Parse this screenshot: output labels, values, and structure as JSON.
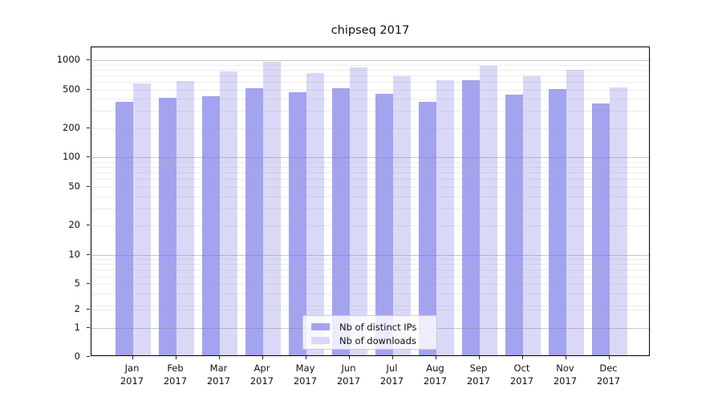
{
  "title": "chipseq 2017",
  "legend": {
    "items": [
      {
        "label": "Nb of distinct IPs"
      },
      {
        "label": "Nb of downloads"
      }
    ]
  },
  "chart_data": {
    "type": "bar",
    "title": "chipseq 2017",
    "categories": [
      "Jan 2017",
      "Feb 2017",
      "Mar 2017",
      "Apr 2017",
      "May 2017",
      "Jun 2017",
      "Jul 2017",
      "Aug 2017",
      "Sep 2017",
      "Oct 2017",
      "Nov 2017",
      "Dec 2017"
    ],
    "series": [
      {
        "name": "Nb of distinct IPs",
        "color": "#a3a3f0",
        "values": [
          360,
          395,
          410,
          495,
          450,
          495,
          430,
          360,
          600,
          425,
          485,
          345
        ]
      },
      {
        "name": "Nb of downloads",
        "color": "#d9d9f7",
        "values": [
          560,
          590,
          740,
          930,
          715,
          810,
          665,
          595,
          850,
          665,
          765,
          505
        ]
      }
    ],
    "xlabel": "",
    "ylabel": "",
    "y_scale": "symlog",
    "y_ticks": [
      0,
      1,
      2,
      5,
      10,
      20,
      50,
      100,
      200,
      500,
      1000
    ],
    "ylim": [
      0,
      1400
    ],
    "grid": "on",
    "legend_position": "lower center"
  }
}
